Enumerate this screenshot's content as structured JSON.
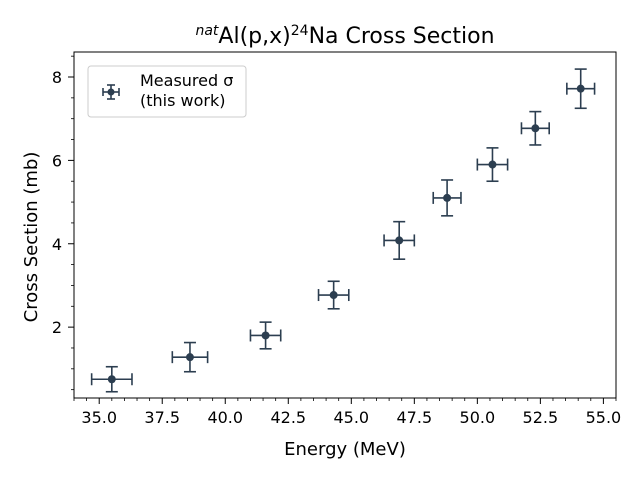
{
  "chart_data": {
    "type": "scatter",
    "title_parts": {
      "pre": "nat",
      "main1": "Al(p,x)",
      "sup": "24",
      "main2": "Na Cross Section"
    },
    "xlabel": "Energy (MeV)",
    "ylabel": "Cross Section (mb)",
    "xlim": [
      34.0,
      55.5
    ],
    "ylim": [
      0.3,
      8.6
    ],
    "xticks": [
      35.0,
      37.5,
      40.0,
      42.5,
      45.0,
      47.5,
      50.0,
      52.5,
      55.0
    ],
    "xtick_labels": [
      "35.0",
      "37.5",
      "40.0",
      "42.5",
      "45.0",
      "47.5",
      "50.0",
      "52.5",
      "55.0"
    ],
    "yticks": [
      2,
      4,
      6,
      8
    ],
    "ytick_labels": [
      "2",
      "4",
      "6",
      "8"
    ],
    "ymajor_step": 2,
    "yminor_step": 0.5,
    "xminor_step": 0.5,
    "legend": {
      "position": "upper-left",
      "line1": "Measured σ",
      "line2": "(this work)"
    },
    "color": "#2c3e50",
    "series": [
      {
        "name": "Measured σ (this work)",
        "points": [
          {
            "x": 35.5,
            "y": 0.75,
            "xerr": 0.8,
            "yerr": 0.3
          },
          {
            "x": 38.6,
            "y": 1.28,
            "xerr": 0.7,
            "yerr": 0.35
          },
          {
            "x": 41.6,
            "y": 1.8,
            "xerr": 0.6,
            "yerr": 0.32
          },
          {
            "x": 44.3,
            "y": 2.77,
            "xerr": 0.6,
            "yerr": 0.33
          },
          {
            "x": 46.9,
            "y": 4.08,
            "xerr": 0.6,
            "yerr": 0.45
          },
          {
            "x": 48.8,
            "y": 5.1,
            "xerr": 0.55,
            "yerr": 0.43
          },
          {
            "x": 50.6,
            "y": 5.9,
            "xerr": 0.6,
            "yerr": 0.4
          },
          {
            "x": 52.3,
            "y": 6.77,
            "xerr": 0.55,
            "yerr": 0.4
          },
          {
            "x": 54.1,
            "y": 7.72,
            "xerr": 0.55,
            "yerr": 0.47
          }
        ]
      }
    ]
  }
}
